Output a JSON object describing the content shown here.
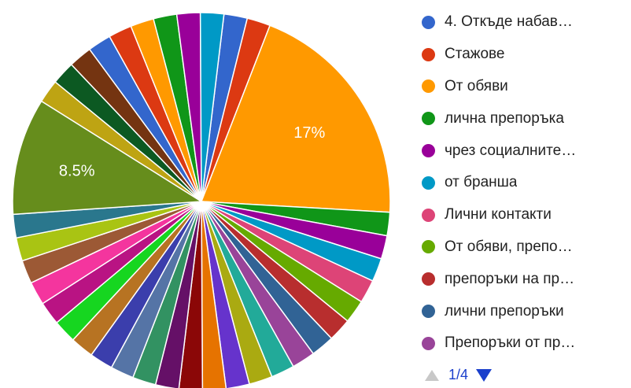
{
  "chart_data": {
    "type": "pie",
    "slice_labels": [
      {
        "value_label": "17%"
      },
      {
        "value_label": "8.5%"
      }
    ],
    "slices": [
      {
        "value": 0.017,
        "color": "#3366cc"
      },
      {
        "value": 0.017,
        "color": "#dc3912"
      },
      {
        "value": 0.17,
        "color": "#ff9900",
        "label": "17%"
      },
      {
        "value": 0.017,
        "color": "#109618"
      },
      {
        "value": 0.017,
        "color": "#990099"
      },
      {
        "value": 0.017,
        "color": "#0099c6"
      },
      {
        "value": 0.017,
        "color": "#dd4477"
      },
      {
        "value": 0.017,
        "color": "#66aa00"
      },
      {
        "value": 0.017,
        "color": "#b82e2e"
      },
      {
        "value": 0.017,
        "color": "#316395"
      },
      {
        "value": 0.017,
        "color": "#994499"
      },
      {
        "value": 0.017,
        "color": "#22aa99"
      },
      {
        "value": 0.017,
        "color": "#aaaa11"
      },
      {
        "value": 0.017,
        "color": "#6633cc"
      },
      {
        "value": 0.017,
        "color": "#e67300"
      },
      {
        "value": 0.017,
        "color": "#8b0707"
      },
      {
        "value": 0.017,
        "color": "#651067"
      },
      {
        "value": 0.017,
        "color": "#329262"
      },
      {
        "value": 0.017,
        "color": "#5574a6"
      },
      {
        "value": 0.017,
        "color": "#3b3eac"
      },
      {
        "value": 0.017,
        "color": "#b77322"
      },
      {
        "value": 0.017,
        "color": "#16d620"
      },
      {
        "value": 0.017,
        "color": "#b91383"
      },
      {
        "value": 0.017,
        "color": "#f4359e"
      },
      {
        "value": 0.017,
        "color": "#9c5935"
      },
      {
        "value": 0.017,
        "color": "#a9c413"
      },
      {
        "value": 0.017,
        "color": "#2a778d"
      },
      {
        "value": 0.085,
        "color": "#668d1c",
        "label": "8.5%"
      },
      {
        "value": 0.017,
        "color": "#bea413"
      },
      {
        "value": 0.017,
        "color": "#0c5922"
      },
      {
        "value": 0.017,
        "color": "#743411"
      },
      {
        "value": 0.017,
        "color": "#3366cc"
      },
      {
        "value": 0.017,
        "color": "#dc3912"
      },
      {
        "value": 0.017,
        "color": "#ff9900"
      },
      {
        "value": 0.017,
        "color": "#109618"
      },
      {
        "value": 0.017,
        "color": "#990099"
      },
      {
        "value": 0.017,
        "color": "#0099c6"
      }
    ]
  },
  "legend": [
    {
      "label": "4. Откъде набав…",
      "color": "#3366cc"
    },
    {
      "label": "Стажове",
      "color": "#dc3912"
    },
    {
      "label": "От обяви",
      "color": "#ff9900"
    },
    {
      "label": "лична препоръка",
      "color": "#109618"
    },
    {
      "label": "чрез социалните…",
      "color": "#990099"
    },
    {
      "label": "от бранша",
      "color": "#0099c6"
    },
    {
      "label": "Лични контакти",
      "color": "#dd4477"
    },
    {
      "label": "От обяви, препо…",
      "color": "#66aa00"
    },
    {
      "label": "препоръки на пр…",
      "color": "#b82e2e"
    },
    {
      "label": "лични препоръки",
      "color": "#316395"
    },
    {
      "label": "Препоръки от пр…",
      "color": "#994499"
    }
  ],
  "pager": {
    "text": "1/4"
  }
}
